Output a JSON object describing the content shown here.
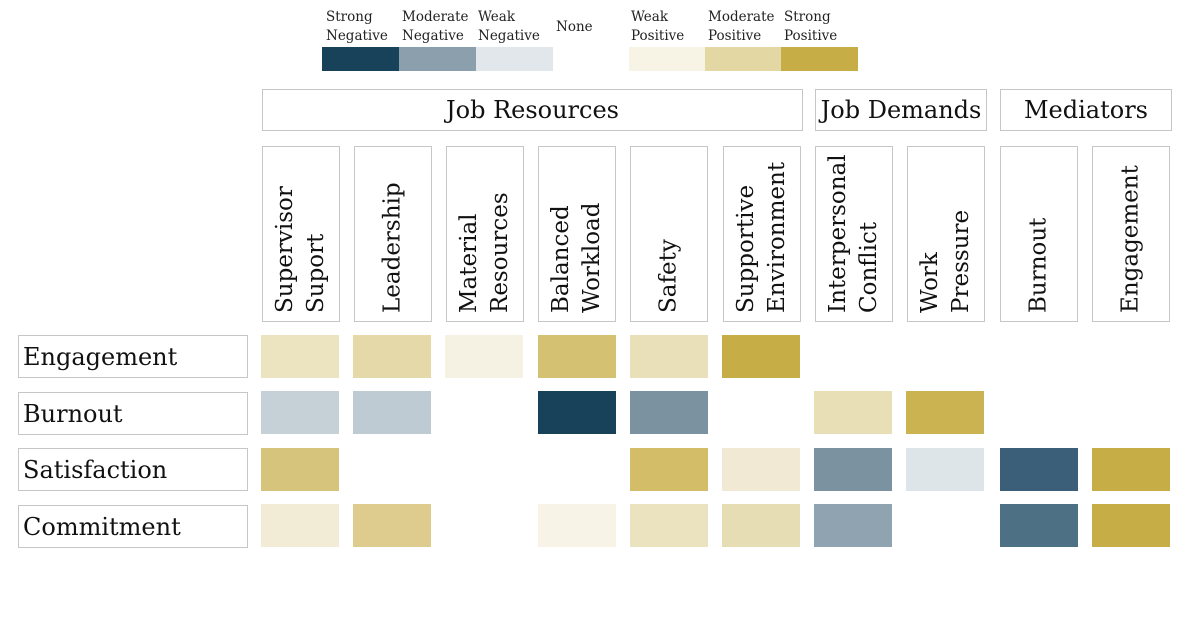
{
  "chart_data": {
    "type": "heatmap",
    "title": "",
    "legend": {
      "placement": "top",
      "levels": [
        {
          "key": "strong_negative",
          "label": "Strong\nNegative",
          "color": "#17425a"
        },
        {
          "key": "moderate_negative",
          "label": "Moderate\nNegative",
          "color": "#8b9fad"
        },
        {
          "key": "weak_negative",
          "label": "Weak\nNegative",
          "color": "#e1e7eb"
        },
        {
          "key": "none",
          "label": "None",
          "color": "#ffffff"
        },
        {
          "key": "weak_positive",
          "label": "Weak\nPositive",
          "color": "#f7f3e5"
        },
        {
          "key": "moderate_positive",
          "label": "Moderate\nPositive",
          "color": "#e3d7a3"
        },
        {
          "key": "strong_positive",
          "label": "Strong\nPositive",
          "color": "#c7ad46"
        }
      ]
    },
    "column_groups": [
      {
        "label": "Job Resources",
        "span": 6
      },
      {
        "label": "Job Demands",
        "span": 2
      },
      {
        "label": "Mediators",
        "span": 2
      }
    ],
    "columns": [
      "Supervisor\nSuport",
      "Leadership",
      "Material\nResources",
      "Balanced\nWorkload",
      "Safety",
      "Supportive\nEnvironment",
      "Interpersonal\nConflict",
      "Work\nPressure",
      "Burnout",
      "Engagement"
    ],
    "rows": [
      "Engagement",
      "Burnout",
      "Satisfaction",
      "Commitment"
    ],
    "cells": [
      [
        "#ece3c0",
        "#e5d9aa",
        "#f6f2e3",
        "#d4c172",
        "#e9e0ba",
        "#c7ad46",
        null,
        null,
        null,
        null
      ],
      [
        "#c5d1d7",
        "#becbd2",
        null,
        "#17425a",
        "#7b93a1",
        null,
        "#e8dfb7",
        "#cbb352",
        null,
        null
      ],
      [
        "#d7c47c",
        null,
        null,
        null,
        "#d3bd68",
        "#f1e9d3",
        "#7b93a1",
        "#dee5e9",
        "#3b5f78",
        "#c7ad46"
      ],
      [
        "#f2ecd7",
        "#ddcc8e",
        null,
        "#f7f4e7",
        "#ebe2bf",
        "#e7ddb4",
        "#8fa4b0",
        null,
        "#4d7085",
        "#c7ad46"
      ]
    ],
    "cell_levels": [
      [
        "weak_positive",
        "moderate_positive",
        "weak_positive",
        "moderate_positive",
        "weak_positive",
        "strong_positive",
        "none",
        "none",
        "none",
        "none"
      ],
      [
        "weak_negative",
        "weak_negative",
        "none",
        "strong_negative",
        "moderate_negative",
        "none",
        "moderate_positive",
        "strong_positive",
        "none",
        "none"
      ],
      [
        "moderate_positive",
        "none",
        "none",
        "none",
        "moderate_positive",
        "weak_positive",
        "moderate_negative",
        "weak_negative",
        "strong_negative",
        "strong_positive"
      ],
      [
        "weak_positive",
        "moderate_positive",
        "none",
        "weak_positive",
        "weak_positive",
        "moderate_positive",
        "moderate_negative",
        "none",
        "strong_negative",
        "strong_positive"
      ]
    ]
  }
}
